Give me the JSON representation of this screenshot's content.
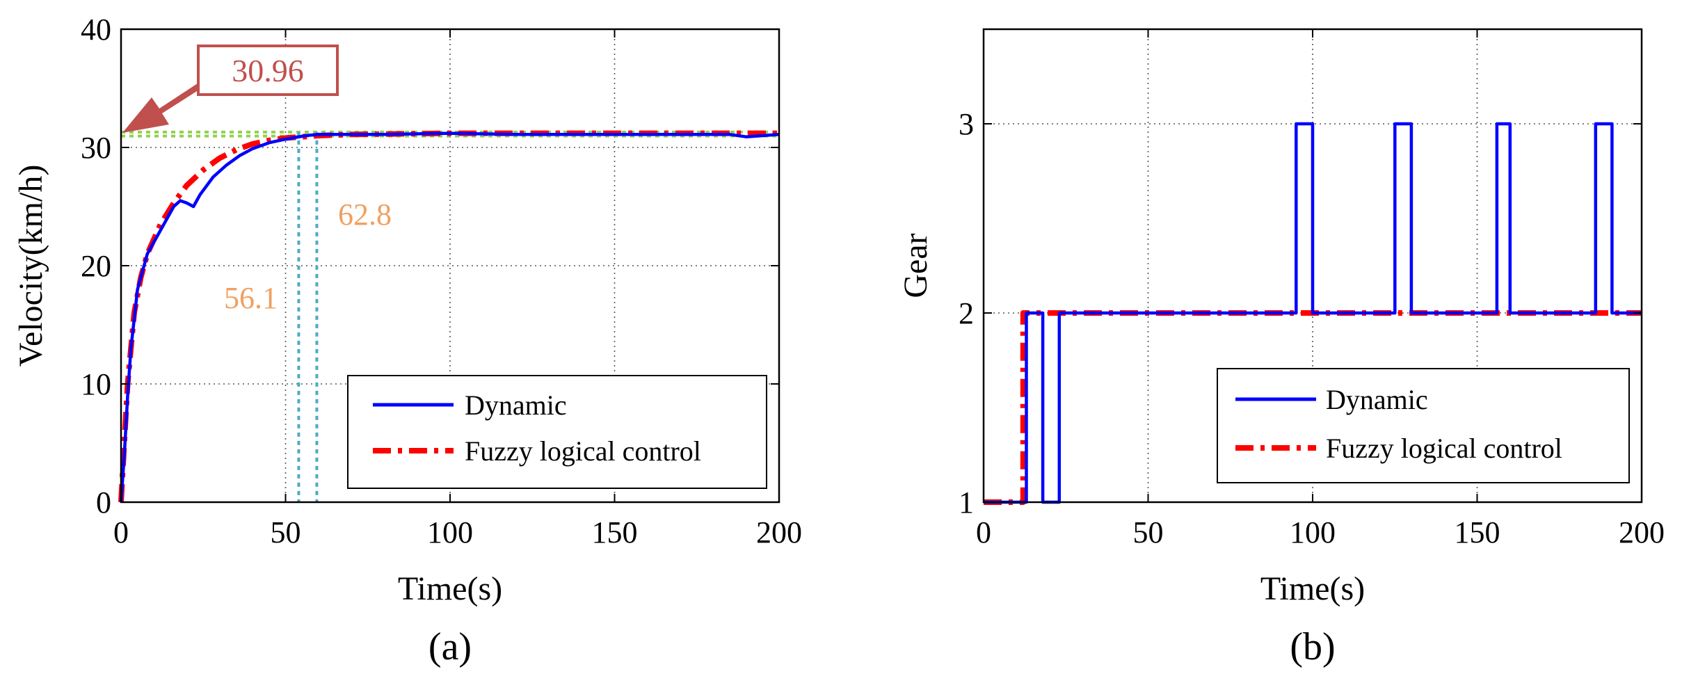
{
  "chart_data": [
    {
      "type": "line",
      "panel_label": "(a)",
      "xlabel": "Time(s)",
      "ylabel": "Velocity(km/h)",
      "xlim": [
        0,
        200
      ],
      "ylim": [
        0,
        40
      ],
      "xticks": [
        "0",
        "50",
        "100",
        "150",
        "200"
      ],
      "yticks": [
        "0",
        "10",
        "20",
        "30",
        "40"
      ],
      "grid": "dotted",
      "legend_position": "bottom-right",
      "series": [
        {
          "name": "Dynamic",
          "color": "#0000ff",
          "style": "solid",
          "x": [
            0,
            1,
            2,
            3,
            5,
            8,
            12,
            16,
            18,
            20,
            22,
            24,
            28,
            32,
            36,
            40,
            45,
            50,
            56.1,
            60,
            62.8,
            70,
            80,
            100,
            120,
            150,
            185,
            190,
            200
          ],
          "y": [
            0,
            4,
            9,
            13,
            18,
            21,
            23,
            25,
            25.5,
            25.3,
            25,
            26,
            27.5,
            28.5,
            29.3,
            29.9,
            30.4,
            30.7,
            31,
            31.1,
            31.1,
            31.1,
            31.1,
            31.2,
            31.1,
            31.1,
            31.1,
            30.9,
            31.1
          ]
        },
        {
          "name": "Fuzzy logical control",
          "color": "#ff0000",
          "style": "dashdot",
          "x": [
            0,
            1,
            2,
            4,
            6,
            8,
            12,
            16,
            20,
            25,
            30,
            35,
            40,
            45,
            50,
            60,
            70,
            100,
            150,
            200
          ],
          "y": [
            0,
            5,
            10,
            16,
            19,
            21,
            23.5,
            25.3,
            26.8,
            28.1,
            29.1,
            29.8,
            30.3,
            30.6,
            30.8,
            31.0,
            31.1,
            31.2,
            31.2,
            31.2
          ]
        }
      ],
      "reference_lines": [
        {
          "axis": "y",
          "value": 31.3,
          "color": "#92d050",
          "style": "dotted"
        },
        {
          "axis": "y",
          "value": 30.96,
          "color": "#92d050",
          "style": "dotted"
        },
        {
          "axis": "x",
          "value": 54,
          "color": "#4bacc6",
          "style": "dotted"
        },
        {
          "axis": "x",
          "value": 59.5,
          "color": "#4bacc6",
          "style": "dotted"
        }
      ],
      "annotations": [
        {
          "text": "30.96",
          "kind": "callout-box",
          "color": "#c0504d",
          "x": 0,
          "y": 30.96
        },
        {
          "text": "62.8",
          "color": "#f0a060",
          "x": 66,
          "y": 24
        },
        {
          "text": "56.1",
          "color": "#f0a060",
          "x": 31,
          "y": 16.5
        }
      ]
    },
    {
      "type": "line",
      "panel_label": "(b)",
      "xlabel": "Time(s)",
      "ylabel": "Gear",
      "xlim": [
        0,
        200
      ],
      "ylim": [
        1,
        3.5
      ],
      "xticks": [
        "0",
        "50",
        "100",
        "150",
        "200"
      ],
      "yticks": [
        "1",
        "2",
        "3"
      ],
      "grid": "dotted",
      "legend_position": "bottom-right",
      "series": [
        {
          "name": "Dynamic",
          "color": "#0000ff",
          "style": "solid",
          "step": true,
          "x": [
            0,
            13,
            18,
            23,
            95,
            100,
            125,
            130,
            156,
            160,
            186,
            191,
            200
          ],
          "y": [
            1,
            2,
            1,
            2,
            3,
            2,
            3,
            2,
            3,
            2,
            3,
            2,
            2
          ]
        },
        {
          "name": "Fuzzy logical control",
          "color": "#ff0000",
          "style": "dashdot",
          "step": true,
          "x": [
            0,
            12,
            200
          ],
          "y": [
            1,
            2,
            2
          ]
        }
      ]
    }
  ]
}
